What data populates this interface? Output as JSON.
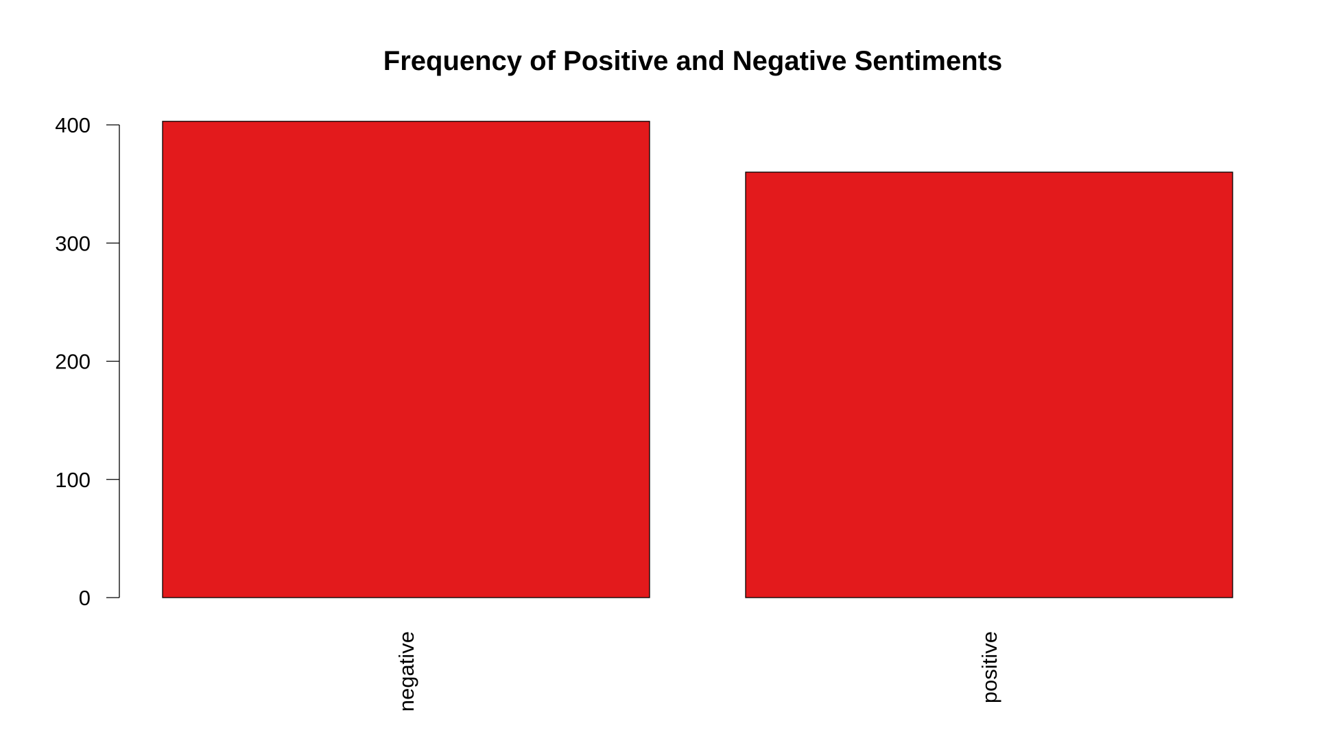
{
  "chart_data": {
    "type": "bar",
    "title": "Frequency of Positive and Negative Sentiments",
    "xlabel": "",
    "ylabel": "",
    "categories": [
      "negative",
      "positive"
    ],
    "values": [
      403,
      360
    ],
    "ylim": [
      0,
      400
    ],
    "yticks": [
      0,
      100,
      200,
      300,
      400
    ],
    "bar_color": "#E31A1C",
    "grid": false,
    "legend": "none"
  }
}
